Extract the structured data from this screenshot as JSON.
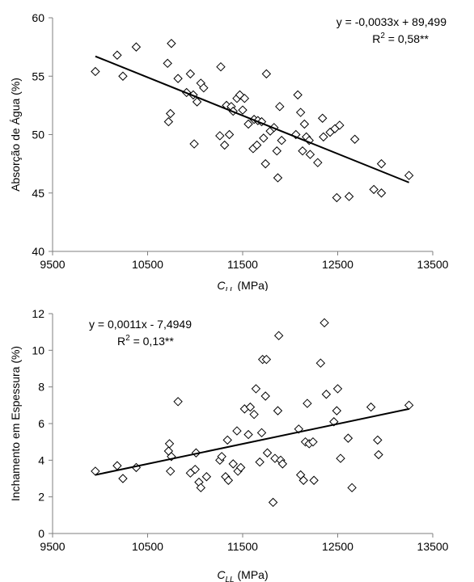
{
  "chart_data": [
    {
      "type": "scatter",
      "xlabel_main": "C",
      "xlabel_sub": "LL",
      "xlabel_unit": " (MPa)",
      "ylabel": "Absorção de Água (%)",
      "xlim": [
        9500,
        13500
      ],
      "ylim": [
        40,
        60
      ],
      "xticks": [
        9500,
        10500,
        11500,
        12500,
        13500
      ],
      "yticks": [
        40,
        45,
        50,
        55,
        60
      ],
      "equation": "y = -0,0033x + 89,499",
      "r2_prefix": "R",
      "r2_sup": "2",
      "r2_suffix": " = 0,58**",
      "trendline": {
        "x": [
          9950,
          13250
        ],
        "y": [
          56.7,
          45.9
        ]
      },
      "marker_color": "#000000",
      "points": [
        [
          9950,
          55.4
        ],
        [
          10180,
          56.8
        ],
        [
          10240,
          55.0
        ],
        [
          10380,
          57.5
        ],
        [
          10710,
          56.1
        ],
        [
          10750,
          57.8
        ],
        [
          10720,
          51.1
        ],
        [
          10740,
          51.8
        ],
        [
          10820,
          54.8
        ],
        [
          10910,
          53.6
        ],
        [
          10950,
          55.2
        ],
        [
          10990,
          49.2
        ],
        [
          10980,
          53.4
        ],
        [
          11020,
          52.8
        ],
        [
          11060,
          54.4
        ],
        [
          11090,
          54.0
        ],
        [
          11270,
          55.8
        ],
        [
          11260,
          49.9
        ],
        [
          11310,
          49.1
        ],
        [
          11330,
          52.5
        ],
        [
          11360,
          50.0
        ],
        [
          11380,
          52.4
        ],
        [
          11400,
          52.0
        ],
        [
          11440,
          53.1
        ],
        [
          11470,
          53.4
        ],
        [
          11500,
          52.1
        ],
        [
          11520,
          53.1
        ],
        [
          11560,
          50.9
        ],
        [
          11620,
          51.3
        ],
        [
          11610,
          48.8
        ],
        [
          11650,
          49.1
        ],
        [
          11660,
          51.2
        ],
        [
          11700,
          51.1
        ],
        [
          11720,
          49.7
        ],
        [
          11740,
          47.5
        ],
        [
          11750,
          55.2
        ],
        [
          11790,
          50.3
        ],
        [
          11830,
          50.6
        ],
        [
          11860,
          48.6
        ],
        [
          11870,
          46.3
        ],
        [
          11890,
          52.4
        ],
        [
          11910,
          49.5
        ],
        [
          12060,
          50.0
        ],
        [
          12080,
          53.4
        ],
        [
          12110,
          51.9
        ],
        [
          12130,
          48.6
        ],
        [
          12150,
          50.9
        ],
        [
          12170,
          49.8
        ],
        [
          12200,
          49.5
        ],
        [
          12210,
          48.3
        ],
        [
          12290,
          47.6
        ],
        [
          12340,
          51.4
        ],
        [
          12350,
          49.8
        ],
        [
          12420,
          50.2
        ],
        [
          12470,
          50.5
        ],
        [
          12490,
          44.6
        ],
        [
          12520,
          50.8
        ],
        [
          12620,
          44.7
        ],
        [
          12680,
          49.6
        ],
        [
          12880,
          45.3
        ],
        [
          12960,
          47.5
        ],
        [
          12960,
          45.0
        ],
        [
          13250,
          46.5
        ]
      ]
    },
    {
      "type": "scatter",
      "xlabel_main": "C",
      "xlabel_sub": "LL",
      "xlabel_unit": " (MPa)",
      "ylabel": "Inchamento em Espessura (%)",
      "xlim": [
        9500,
        13500
      ],
      "ylim": [
        0,
        12
      ],
      "xticks": [
        9500,
        10500,
        11500,
        12500,
        13500
      ],
      "yticks": [
        0,
        2,
        4,
        6,
        8,
        10,
        12
      ],
      "equation": "y = 0,0011x - 7,4949",
      "r2_prefix": "R",
      "r2_sup": "2",
      "r2_suffix": " = 0,13**",
      "trendline": {
        "x": [
          9950,
          13250
        ],
        "y": [
          3.2,
          6.8
        ]
      },
      "marker_color": "#000000",
      "points": [
        [
          9950,
          3.4
        ],
        [
          10180,
          3.7
        ],
        [
          10240,
          3.0
        ],
        [
          10380,
          3.6
        ],
        [
          10730,
          4.9
        ],
        [
          10720,
          4.5
        ],
        [
          10740,
          3.4
        ],
        [
          10750,
          4.2
        ],
        [
          10820,
          7.2
        ],
        [
          10950,
          3.3
        ],
        [
          11000,
          3.5
        ],
        [
          11010,
          4.4
        ],
        [
          11040,
          2.8
        ],
        [
          11060,
          2.5
        ],
        [
          11120,
          3.1
        ],
        [
          11260,
          4.0
        ],
        [
          11280,
          4.2
        ],
        [
          11320,
          3.1
        ],
        [
          11340,
          5.1
        ],
        [
          11350,
          2.9
        ],
        [
          11400,
          3.8
        ],
        [
          11440,
          5.6
        ],
        [
          11450,
          3.4
        ],
        [
          11480,
          3.6
        ],
        [
          11520,
          6.8
        ],
        [
          11560,
          5.4
        ],
        [
          11580,
          6.9
        ],
        [
          11620,
          6.5
        ],
        [
          11640,
          7.9
        ],
        [
          11680,
          3.9
        ],
        [
          11700,
          5.5
        ],
        [
          11710,
          9.5
        ],
        [
          11740,
          7.5
        ],
        [
          11750,
          9.5
        ],
        [
          11760,
          4.4
        ],
        [
          11820,
          1.7
        ],
        [
          11840,
          4.1
        ],
        [
          11870,
          6.7
        ],
        [
          11880,
          10.8
        ],
        [
          11900,
          4.0
        ],
        [
          11920,
          3.8
        ],
        [
          12090,
          5.7
        ],
        [
          12110,
          3.2
        ],
        [
          12140,
          2.9
        ],
        [
          12160,
          5.0
        ],
        [
          12180,
          7.1
        ],
        [
          12200,
          4.9
        ],
        [
          12240,
          5.0
        ],
        [
          12250,
          2.9
        ],
        [
          12320,
          9.3
        ],
        [
          12360,
          11.5
        ],
        [
          12380,
          7.6
        ],
        [
          12460,
          6.1
        ],
        [
          12490,
          6.7
        ],
        [
          12500,
          7.9
        ],
        [
          12530,
          4.1
        ],
        [
          12610,
          5.2
        ],
        [
          12650,
          2.5
        ],
        [
          12850,
          6.9
        ],
        [
          12920,
          5.1
        ],
        [
          12930,
          4.3
        ],
        [
          13250,
          7.0
        ]
      ]
    }
  ]
}
